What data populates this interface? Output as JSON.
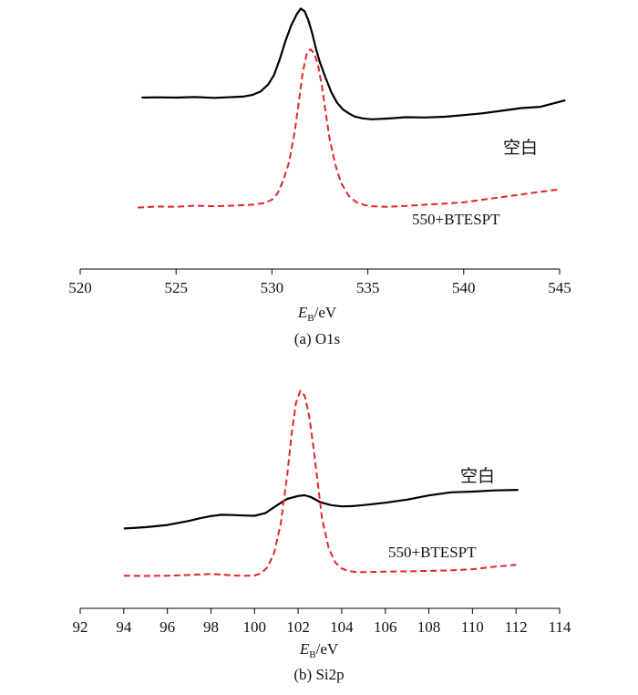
{
  "chart_data": [
    {
      "type": "line",
      "caption": "(a) O1s",
      "xlabel_main": "E",
      "xlabel_sub": "B",
      "xlabel_unit": "/eV",
      "xlim": [
        520,
        545
      ],
      "xticks": [
        520,
        525,
        530,
        535,
        540,
        545
      ],
      "series": [
        {
          "name": "空白",
          "color": "#000000",
          "dash": "solid",
          "x": [
            523.2,
            524,
            525,
            526,
            527,
            528,
            528.5,
            529,
            529.4,
            529.8,
            530.1,
            530.4,
            530.7,
            531,
            531.3,
            531.5,
            531.7,
            531.9,
            532.1,
            532.3,
            532.5,
            532.8,
            533.1,
            533.4,
            533.7,
            534,
            534.3,
            534.7,
            535.2,
            536,
            537,
            538,
            539,
            540,
            541,
            542,
            543,
            544,
            545.3
          ],
          "y": [
            65.5,
            65.6,
            65.5,
            65.7,
            65.4,
            65.7,
            65.9,
            66.6,
            67.8,
            70.5,
            74,
            80,
            87,
            93,
            97.5,
            99.5,
            98.5,
            95,
            90,
            84,
            79,
            73,
            67.5,
            63.5,
            61,
            59.5,
            58.3,
            57.6,
            57.2,
            57.5,
            58,
            57.9,
            58.2,
            58.8,
            59.5,
            60.5,
            61.5,
            62,
            64.5
          ]
        },
        {
          "name": "550+BTESPT",
          "color": "#e0262b",
          "dash": "dashed",
          "x": [
            523.0,
            524,
            525,
            526,
            527,
            528,
            529,
            529.6,
            530,
            530.3,
            530.6,
            530.9,
            531.2,
            531.4,
            531.6,
            531.8,
            532,
            532.2,
            532.4,
            532.6,
            532.8,
            533,
            533.3,
            533.6,
            534,
            534.4,
            534.8,
            535.2,
            536,
            537,
            538,
            539,
            540,
            541,
            542,
            543,
            544,
            545
          ],
          "y": [
            23.5,
            23.9,
            23.8,
            24.2,
            24,
            24.2,
            24.6,
            25.2,
            26.5,
            29,
            34,
            41,
            53,
            64,
            75,
            82,
            84,
            82.5,
            78,
            70,
            60,
            50,
            40,
            33,
            28,
            25.5,
            24.5,
            24,
            23.8,
            24.1,
            24.6,
            25,
            25.5,
            26.5,
            27.5,
            28.5,
            29.5,
            30.5
          ]
        }
      ]
    },
    {
      "type": "line",
      "caption": "(b) Si2p",
      "xlabel_main": "E",
      "xlabel_sub": "B",
      "xlabel_unit": "/eV",
      "xlim": [
        92,
        114
      ],
      "xticks": [
        92,
        94,
        96,
        98,
        100,
        102,
        104,
        106,
        108,
        110,
        112,
        114
      ],
      "series": [
        {
          "name": "空白",
          "color": "#000000",
          "dash": "solid",
          "x": [
            94,
            95,
            96,
            97,
            97.5,
            98,
            98.5,
            99,
            99.5,
            100,
            100.5,
            101,
            101.5,
            102,
            102.3,
            102.6,
            103,
            103.5,
            104,
            104.5,
            105,
            106,
            107,
            108,
            109,
            110,
            111,
            112.1
          ],
          "y": [
            33,
            33.6,
            34.5,
            36.2,
            37.3,
            38.2,
            38.7,
            38.6,
            38.4,
            38.3,
            39.4,
            42.5,
            45.3,
            46.5,
            46.8,
            46,
            44,
            42.7,
            42.2,
            42.3,
            42.7,
            43.7,
            45,
            46.7,
            48,
            48.3,
            48.8,
            49
          ]
        },
        {
          "name": "550+BTESPT",
          "color": "#e0262b",
          "dash": "dashed",
          "x": [
            94,
            95,
            96,
            97,
            98,
            98.5,
            99,
            99.5,
            100,
            100.3,
            100.6,
            100.9,
            101.2,
            101.5,
            101.7,
            101.9,
            102.1,
            102.3,
            102.5,
            102.7,
            102.9,
            103.1,
            103.4,
            103.7,
            104,
            104.3,
            104.7,
            105,
            106,
            107,
            108,
            109,
            110,
            111,
            112
          ],
          "y": [
            13.5,
            13.4,
            13.5,
            13.8,
            14.2,
            14,
            13.6,
            13.5,
            13.6,
            14.5,
            17,
            23,
            35,
            55,
            72,
            85,
            90,
            88,
            80,
            67,
            52,
            37,
            25,
            19,
            16.5,
            15.5,
            15,
            15,
            15.2,
            15.3,
            15.5,
            15.7,
            16.2,
            17.2,
            18
          ]
        }
      ]
    }
  ]
}
